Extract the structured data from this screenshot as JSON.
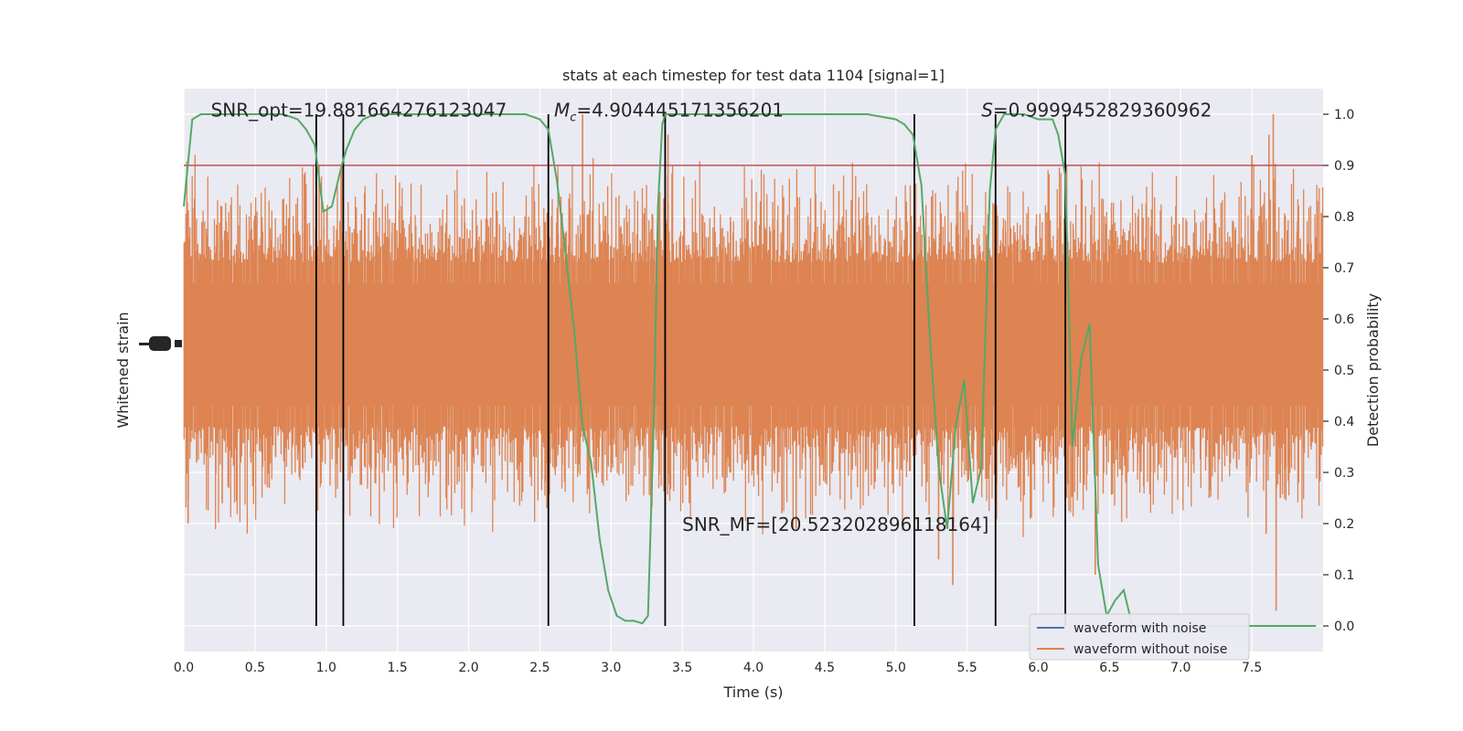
{
  "chart_data": {
    "type": "line",
    "title": "stats at each timestep for test data 1104 [signal=1]",
    "xlabel": "Time (s)",
    "ylabel_left": "Whitened strain",
    "ylabel_right": "Detection probability",
    "xlim": [
      0,
      8.0
    ],
    "ylim_right": [
      -0.05,
      1.05
    ],
    "x_ticks": [
      "0.0",
      "0.5",
      "1.0",
      "1.5",
      "2.0",
      "2.5",
      "3.0",
      "3.5",
      "4.0",
      "4.5",
      "5.0",
      "5.5",
      "6.0",
      "6.5",
      "7.0",
      "7.5"
    ],
    "y_ticks_right": [
      "0.0",
      "0.1",
      "0.2",
      "0.3",
      "0.4",
      "0.5",
      "0.6",
      "0.7",
      "0.8",
      "0.9",
      "1.0"
    ],
    "grid": true,
    "annotations": [
      {
        "text": "SNR_opt=19.881664276123047",
        "x": 0.19,
        "y": 1.01
      },
      {
        "text": "=4.904445171356201",
        "prefix": "M",
        "subscript": "c",
        "x": 2.6,
        "y": 1.01
      },
      {
        "text": "=0.9999452829360962",
        "prefix": "S",
        "x": 5.6,
        "y": 1.01
      },
      {
        "text": "SNR_MF=[20.523202896118164]",
        "x": 3.5,
        "y": 0.2
      }
    ],
    "threshold": {
      "y": 0.9,
      "color": "#c44e52"
    },
    "vlines": [
      0.93,
      1.12,
      2.56,
      3.38,
      5.13,
      5.7,
      6.19
    ],
    "detection_probability": {
      "color": "#55a868",
      "x": [
        0.0,
        0.06,
        0.12,
        0.25,
        0.4,
        0.55,
        0.7,
        0.8,
        0.86,
        0.92,
        0.98,
        1.04,
        1.1,
        1.14,
        1.2,
        1.26,
        1.34,
        1.45,
        1.6,
        1.8,
        2.0,
        2.2,
        2.4,
        2.5,
        2.56,
        2.62,
        2.68,
        2.74,
        2.8,
        2.86,
        2.92,
        2.98,
        3.04,
        3.1,
        3.16,
        3.22,
        3.26,
        3.3,
        3.33,
        3.36,
        3.38,
        3.42,
        3.46,
        3.5,
        3.6,
        3.8,
        4.0,
        4.2,
        4.5,
        4.8,
        5.0,
        5.06,
        5.12,
        5.18,
        5.24,
        5.3,
        5.36,
        5.42,
        5.48,
        5.54,
        5.6,
        5.66,
        5.7,
        5.76,
        5.82,
        5.9,
        6.0,
        6.1,
        6.14,
        6.19,
        6.24,
        6.3,
        6.36,
        6.42,
        6.48,
        6.54,
        6.6,
        6.66,
        6.72,
        6.78,
        6.84,
        6.9,
        7.0,
        7.2,
        7.4,
        7.6,
        7.8,
        7.95
      ],
      "y": [
        0.82,
        0.99,
        1.0,
        1.0,
        1.0,
        1.0,
        1.0,
        0.99,
        0.97,
        0.94,
        0.81,
        0.82,
        0.89,
        0.93,
        0.97,
        0.99,
        1.0,
        1.0,
        1.0,
        1.0,
        1.0,
        1.0,
        1.0,
        0.99,
        0.97,
        0.87,
        0.73,
        0.58,
        0.39,
        0.32,
        0.17,
        0.07,
        0.02,
        0.01,
        0.01,
        0.005,
        0.02,
        0.4,
        0.82,
        0.98,
        1.0,
        1.0,
        1.0,
        1.0,
        1.0,
        1.0,
        1.0,
        1.0,
        1.0,
        1.0,
        0.99,
        0.98,
        0.96,
        0.86,
        0.56,
        0.31,
        0.19,
        0.39,
        0.48,
        0.24,
        0.31,
        0.85,
        0.97,
        1.0,
        1.0,
        1.0,
        0.99,
        0.99,
        0.96,
        0.88,
        0.35,
        0.52,
        0.59,
        0.12,
        0.02,
        0.05,
        0.07,
        0.0,
        0.0,
        0.0,
        0.0,
        0.0,
        0.0,
        0.0,
        0.0,
        0.0,
        0.0,
        0.0
      ]
    },
    "waveform_without_noise": {
      "color": "#dd8452",
      "center": 0.55,
      "noise_base_half_width": 0.16,
      "spikes": [
        {
          "x": 0.03,
          "y": 0.2
        },
        {
          "x": 0.27,
          "y": 0.24
        },
        {
          "x": 0.6,
          "y": 0.27
        },
        {
          "x": 0.95,
          "y": 0.9
        },
        {
          "x": 1.1,
          "y": 0.3
        },
        {
          "x": 1.35,
          "y": 0.31
        },
        {
          "x": 1.7,
          "y": 0.3
        },
        {
          "x": 2.1,
          "y": 0.3
        },
        {
          "x": 2.55,
          "y": 0.23
        },
        {
          "x": 2.8,
          "y": 1.0
        },
        {
          "x": 3.0,
          "y": 0.3
        },
        {
          "x": 3.4,
          "y": 0.96
        },
        {
          "x": 3.55,
          "y": 0.24
        },
        {
          "x": 4.2,
          "y": 0.22
        },
        {
          "x": 4.3,
          "y": 0.19
        },
        {
          "x": 4.6,
          "y": 0.85
        },
        {
          "x": 5.3,
          "y": 0.13
        },
        {
          "x": 5.4,
          "y": 0.08
        },
        {
          "x": 5.6,
          "y": 0.3
        },
        {
          "x": 5.7,
          "y": 0.87
        },
        {
          "x": 6.2,
          "y": 0.25
        },
        {
          "x": 6.4,
          "y": 0.1
        },
        {
          "x": 7.2,
          "y": 0.25
        },
        {
          "x": 7.5,
          "y": 0.92
        },
        {
          "x": 7.6,
          "y": 0.18
        },
        {
          "x": 7.62,
          "y": 0.96
        },
        {
          "x": 7.65,
          "y": 1.0
        },
        {
          "x": 7.67,
          "y": 0.03
        },
        {
          "x": 7.7,
          "y": 0.25
        }
      ]
    },
    "legend": {
      "placement": "lower-right",
      "entries": [
        {
          "label": "waveform with noise",
          "color": "#4c72b0"
        },
        {
          "label": "waveform without noise",
          "color": "#dd8452"
        }
      ]
    },
    "left_axis_tick_marks": "overlapping illegible labels near zero"
  }
}
